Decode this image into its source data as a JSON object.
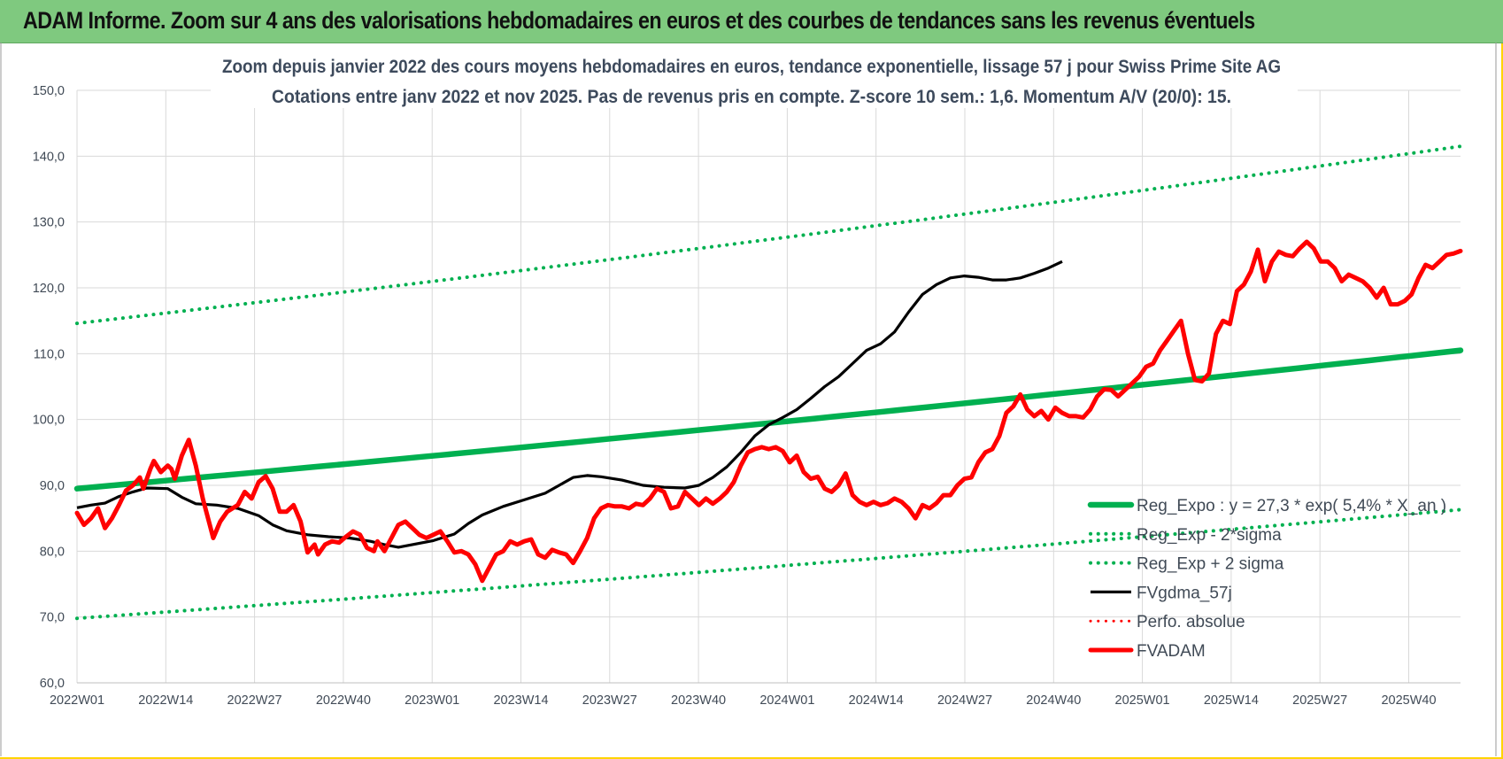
{
  "header": {
    "title": "ADAM Informe. Zoom sur 4 ans des valorisations hebdomadaires en euros et des courbes de tendances sans les revenus éventuels"
  },
  "chart_data": {
    "type": "line",
    "title": "Zoom depuis janvier 2022 des cours moyens hebdomadaires en euros, tendance exponentielle, lissage 57 j pour Swiss Prime Site AG",
    "subtitle": "Cotations entre janv 2022 et nov 2025. Pas de revenus pris en compte. Z-score 10 sem.: 1,6. Momentum A/V (20/0): 15.",
    "xlabel": "",
    "ylabel": "",
    "ylim": [
      60,
      150
    ],
    "y_ticks": [
      "60,0",
      "70,0",
      "80,0",
      "90,0",
      "100,0",
      "110,0",
      "120,0",
      "130,0",
      "140,0",
      "150,0"
    ],
    "x_ticks": [
      "2022W01",
      "2022W14",
      "2022W27",
      "2022W40",
      "2023W01",
      "2023W14",
      "2023W27",
      "2023W40",
      "2024W01",
      "2024W14",
      "2024W27",
      "2024W40",
      "2025W01",
      "2025W14",
      "2025W27",
      "2025W40"
    ],
    "x": {
      "start": "2022W01",
      "end": "2025W48",
      "points": 204
    },
    "grid": true,
    "legend_position": "bottom-right",
    "series": [
      {
        "name": "Reg_Expo : y = 27,3 * exp( 5,4% * X_an )",
        "style": "solid-thick",
        "color": "#00b050",
        "start": 89.5,
        "end": 110.5
      },
      {
        "name": "Reg_Exp - 2*sigma",
        "style": "dotted",
        "color": "#00b050",
        "start": 69.8,
        "end": 86.3
      },
      {
        "name": "Reg_Exp + 2 sigma",
        "style": "dotted",
        "color": "#00b050",
        "start": 114.6,
        "end": 141.5
      },
      {
        "name": "FVgdma_57j",
        "style": "solid",
        "color": "#000000",
        "keypoints": [
          [
            0,
            86.6
          ],
          [
            4,
            87.0
          ],
          [
            8,
            87.3
          ],
          [
            12,
            88.3
          ],
          [
            16,
            89.0
          ],
          [
            20,
            89.6
          ],
          [
            26,
            89.5
          ],
          [
            30,
            88.2
          ],
          [
            34,
            87.2
          ],
          [
            40,
            87.0
          ],
          [
            46,
            86.5
          ],
          [
            52,
            85.4
          ],
          [
            56,
            84.0
          ],
          [
            60,
            83.1
          ],
          [
            66,
            82.5
          ],
          [
            72,
            82.2
          ],
          [
            78,
            82.0
          ],
          [
            84,
            81.5
          ],
          [
            88,
            81.0
          ],
          [
            92,
            80.6
          ],
          [
            96,
            81.0
          ],
          [
            102,
            81.6
          ],
          [
            108,
            82.6
          ],
          [
            112,
            84.2
          ],
          [
            116,
            85.5
          ],
          [
            122,
            86.8
          ],
          [
            128,
            87.8
          ],
          [
            134,
            88.8
          ],
          [
            138,
            90.0
          ],
          [
            142,
            91.2
          ],
          [
            146,
            91.5
          ],
          [
            150,
            91.3
          ],
          [
            156,
            90.8
          ],
          [
            162,
            90.0
          ],
          [
            168,
            89.7
          ],
          [
            174,
            89.6
          ],
          [
            178,
            90.0
          ],
          [
            182,
            91.2
          ],
          [
            186,
            92.8
          ],
          [
            190,
            95.0
          ],
          [
            194,
            97.5
          ],
          [
            198,
            99.2
          ],
          [
            202,
            100.3
          ],
          [
            206,
            101.5
          ],
          [
            210,
            103.2
          ],
          [
            214,
            105.0
          ],
          [
            218,
            106.5
          ],
          [
            222,
            108.5
          ],
          [
            226,
            110.5
          ],
          [
            230,
            111.5
          ],
          [
            234,
            113.3
          ],
          [
            238,
            116.3
          ],
          [
            242,
            119.0
          ],
          [
            246,
            120.5
          ],
          [
            250,
            121.5
          ],
          [
            254,
            121.8
          ],
          [
            258,
            121.6
          ],
          [
            262,
            121.2
          ],
          [
            266,
            121.2
          ],
          [
            270,
            121.5
          ],
          [
            274,
            122.2
          ],
          [
            278,
            123.0
          ],
          [
            282,
            124.0
          ]
        ]
      },
      {
        "name": "Perfo. absolue",
        "style": "dotted",
        "color": "#ff0000"
      },
      {
        "name": "FVADAM",
        "style": "solid-thick",
        "color": "#ff0000",
        "keypoints": [
          [
            0,
            85.8
          ],
          [
            2,
            84.0
          ],
          [
            4,
            85.0
          ],
          [
            6,
            86.5
          ],
          [
            8,
            83.5
          ],
          [
            10,
            85.0
          ],
          [
            12,
            87.0
          ],
          [
            14,
            89.2
          ],
          [
            16,
            90.0
          ],
          [
            18,
            91.2
          ],
          [
            19,
            89.5
          ],
          [
            21,
            92.5
          ],
          [
            22,
            93.7
          ],
          [
            24,
            92.0
          ],
          [
            26,
            93.0
          ],
          [
            27,
            92.5
          ],
          [
            28,
            91.0
          ],
          [
            30,
            94.5
          ],
          [
            32,
            96.9
          ],
          [
            34,
            93.0
          ],
          [
            36,
            88.0
          ],
          [
            38,
            84.0
          ],
          [
            39,
            82.0
          ],
          [
            41,
            84.5
          ],
          [
            43,
            86.0
          ],
          [
            46,
            87.0
          ],
          [
            48,
            89.0
          ],
          [
            50,
            88.0
          ],
          [
            52,
            90.5
          ],
          [
            54,
            91.4
          ],
          [
            56,
            89.5
          ],
          [
            58,
            86.0
          ],
          [
            60,
            86.0
          ],
          [
            62,
            87.0
          ],
          [
            64,
            84.5
          ],
          [
            66,
            79.8
          ],
          [
            68,
            81.0
          ],
          [
            69,
            79.5
          ],
          [
            71,
            81.0
          ],
          [
            73,
            81.5
          ],
          [
            75,
            81.3
          ],
          [
            77,
            82.2
          ],
          [
            79,
            83.0
          ],
          [
            81,
            82.5
          ],
          [
            83,
            80.5
          ],
          [
            85,
            80.0
          ],
          [
            86,
            81.5
          ],
          [
            88,
            80.0
          ],
          [
            90,
            82.0
          ],
          [
            92,
            84.0
          ],
          [
            94,
            84.5
          ],
          [
            96,
            83.5
          ],
          [
            98,
            82.5
          ],
          [
            100,
            82.0
          ],
          [
            102,
            82.5
          ],
          [
            104,
            83.0
          ],
          [
            106,
            81.5
          ],
          [
            108,
            79.8
          ],
          [
            110,
            80.0
          ],
          [
            112,
            79.5
          ],
          [
            114,
            78.0
          ],
          [
            116,
            75.5
          ],
          [
            118,
            77.5
          ],
          [
            120,
            79.5
          ],
          [
            122,
            80.0
          ],
          [
            124,
            81.5
          ],
          [
            126,
            81.0
          ],
          [
            128,
            81.5
          ],
          [
            130,
            81.8
          ],
          [
            132,
            79.5
          ],
          [
            134,
            79.0
          ],
          [
            136,
            80.2
          ],
          [
            138,
            79.8
          ],
          [
            140,
            79.5
          ],
          [
            142,
            78.2
          ],
          [
            144,
            80.0
          ],
          [
            146,
            82.0
          ],
          [
            148,
            85.0
          ],
          [
            150,
            86.5
          ],
          [
            152,
            87.0
          ],
          [
            154,
            86.8
          ],
          [
            156,
            86.8
          ],
          [
            158,
            86.5
          ],
          [
            160,
            87.2
          ],
          [
            162,
            87.0
          ],
          [
            164,
            88.0
          ],
          [
            166,
            89.5
          ],
          [
            168,
            89.0
          ],
          [
            170,
            86.5
          ],
          [
            172,
            86.8
          ],
          [
            174,
            89.0
          ],
          [
            176,
            88.0
          ],
          [
            178,
            87.0
          ],
          [
            180,
            88.0
          ],
          [
            182,
            87.2
          ],
          [
            184,
            88.0
          ],
          [
            186,
            89.0
          ],
          [
            188,
            90.5
          ],
          [
            190,
            93.0
          ],
          [
            192,
            95.0
          ],
          [
            194,
            95.5
          ],
          [
            196,
            95.8
          ],
          [
            198,
            95.5
          ],
          [
            200,
            95.8
          ],
          [
            202,
            95.2
          ],
          [
            204,
            93.5
          ],
          [
            206,
            94.5
          ],
          [
            208,
            92.0
          ],
          [
            210,
            91.0
          ],
          [
            212,
            91.3
          ],
          [
            214,
            89.5
          ],
          [
            216,
            89.0
          ],
          [
            218,
            90.0
          ],
          [
            220,
            91.8
          ],
          [
            222,
            88.5
          ],
          [
            224,
            87.5
          ],
          [
            226,
            87.0
          ],
          [
            228,
            87.5
          ],
          [
            230,
            87.0
          ],
          [
            232,
            87.3
          ],
          [
            234,
            88.0
          ],
          [
            236,
            87.5
          ],
          [
            238,
            86.5
          ],
          [
            240,
            85.0
          ],
          [
            242,
            87.0
          ],
          [
            244,
            86.5
          ],
          [
            246,
            87.3
          ],
          [
            248,
            88.5
          ],
          [
            250,
            88.5
          ],
          [
            252,
            90.0
          ],
          [
            254,
            91.0
          ],
          [
            256,
            91.2
          ],
          [
            258,
            93.5
          ],
          [
            260,
            95.0
          ],
          [
            262,
            95.5
          ],
          [
            264,
            97.5
          ],
          [
            266,
            101.0
          ],
          [
            268,
            102.0
          ],
          [
            270,
            103.8
          ],
          [
            272,
            101.5
          ],
          [
            274,
            100.5
          ],
          [
            276,
            101.3
          ],
          [
            278,
            100.0
          ],
          [
            280,
            101.8
          ],
          [
            282,
            101.0
          ],
          [
            284,
            100.5
          ],
          [
            286,
            100.5
          ],
          [
            288,
            100.3
          ],
          [
            290,
            101.5
          ],
          [
            292,
            103.5
          ],
          [
            294,
            104.6
          ],
          [
            296,
            104.5
          ],
          [
            298,
            103.5
          ],
          [
            300,
            104.5
          ],
          [
            302,
            105.5
          ],
          [
            304,
            106.5
          ],
          [
            306,
            108.0
          ],
          [
            308,
            108.5
          ],
          [
            310,
            110.5
          ],
          [
            312,
            112.0
          ],
          [
            314,
            113.5
          ],
          [
            316,
            115.0
          ],
          [
            318,
            110.0
          ],
          [
            320,
            106.0
          ],
          [
            322,
            105.8
          ],
          [
            324,
            107.0
          ],
          [
            326,
            113.0
          ],
          [
            328,
            115.0
          ],
          [
            330,
            114.5
          ],
          [
            332,
            119.5
          ],
          [
            334,
            120.5
          ],
          [
            336,
            122.5
          ],
          [
            338,
            125.8
          ],
          [
            340,
            121.0
          ],
          [
            342,
            124.0
          ],
          [
            344,
            125.5
          ],
          [
            346,
            125.0
          ],
          [
            348,
            124.8
          ],
          [
            350,
            126.0
          ],
          [
            352,
            127.0
          ],
          [
            354,
            126.0
          ],
          [
            356,
            124.0
          ],
          [
            358,
            124.0
          ],
          [
            360,
            123.0
          ],
          [
            362,
            121.0
          ],
          [
            364,
            122.0
          ],
          [
            366,
            121.5
          ],
          [
            368,
            121.0
          ],
          [
            370,
            120.0
          ],
          [
            372,
            118.5
          ],
          [
            374,
            120.0
          ],
          [
            376,
            117.5
          ],
          [
            378,
            117.5
          ],
          [
            380,
            118.0
          ],
          [
            382,
            119.0
          ],
          [
            384,
            121.5
          ],
          [
            386,
            123.5
          ],
          [
            388,
            123.0
          ],
          [
            390,
            124.0
          ],
          [
            392,
            125.0
          ],
          [
            394,
            125.2
          ],
          [
            396,
            125.6
          ]
        ]
      }
    ]
  }
}
